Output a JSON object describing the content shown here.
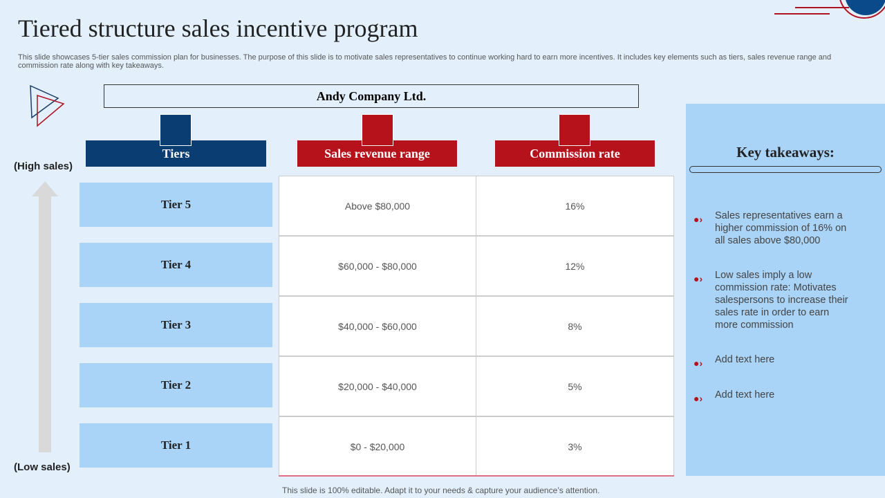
{
  "title": "Tiered structure sales incentive program",
  "description": "This slide showcases 5-tier sales commission plan for businesses. The purpose of this slide is to motivate sales representatives to continue working hard to earn more incentives. It includes key elements such as tiers, sales revenue range and commission rate along with key takeaways.",
  "company": "Andy Company Ltd.",
  "headers": [
    "Tiers",
    "Sales revenue range",
    "Commission rate"
  ],
  "high_label": "(High sales)",
  "low_label": "(Low sales)",
  "rows": [
    [
      "Tier 5",
      "Above $80,000",
      "16%"
    ],
    [
      "Tier 4",
      "$60,000 - $80,000",
      "12%"
    ],
    [
      "Tier 3",
      "$40,000 - $60,000",
      "8%"
    ],
    [
      "Tier 2",
      "$20,000 - $40,000",
      "5%"
    ],
    [
      "Tier 1",
      "$0 - $20,000",
      "3%"
    ]
  ],
  "takeaways_title": "Key takeaways:",
  "takeaways": [
    "Sales representatives earn a higher commission of 16% on all sales above $80,000",
    "Low sales imply a low commission rate: Motivates salespersons to increase their sales rate in order to earn more commission",
    "Add text here",
    "Add text here"
  ],
  "footer": "This slide is 100% editable. Adapt it to your needs & capture your audience’s attention."
}
